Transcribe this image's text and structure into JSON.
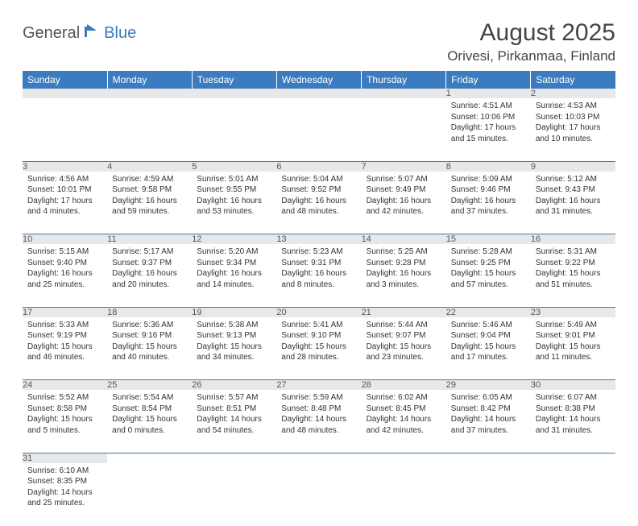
{
  "logo": {
    "text1": "General",
    "text2": "Blue"
  },
  "title": "August 2025",
  "location": "Orivesi, Pirkanmaa, Finland",
  "colors": {
    "header_bg": "#3b7bbf",
    "header_fg": "#ffffff",
    "daynum_bg": "#e8e8e8",
    "rule": "#3b7bbf"
  },
  "weekdays": [
    "Sunday",
    "Monday",
    "Tuesday",
    "Wednesday",
    "Thursday",
    "Friday",
    "Saturday"
  ],
  "weeks": [
    [
      null,
      null,
      null,
      null,
      null,
      {
        "n": "1",
        "sr": "Sunrise: 4:51 AM",
        "ss": "Sunset: 10:06 PM",
        "dl": "Daylight: 17 hours and 15 minutes."
      },
      {
        "n": "2",
        "sr": "Sunrise: 4:53 AM",
        "ss": "Sunset: 10:03 PM",
        "dl": "Daylight: 17 hours and 10 minutes."
      }
    ],
    [
      {
        "n": "3",
        "sr": "Sunrise: 4:56 AM",
        "ss": "Sunset: 10:01 PM",
        "dl": "Daylight: 17 hours and 4 minutes."
      },
      {
        "n": "4",
        "sr": "Sunrise: 4:59 AM",
        "ss": "Sunset: 9:58 PM",
        "dl": "Daylight: 16 hours and 59 minutes."
      },
      {
        "n": "5",
        "sr": "Sunrise: 5:01 AM",
        "ss": "Sunset: 9:55 PM",
        "dl": "Daylight: 16 hours and 53 minutes."
      },
      {
        "n": "6",
        "sr": "Sunrise: 5:04 AM",
        "ss": "Sunset: 9:52 PM",
        "dl": "Daylight: 16 hours and 48 minutes."
      },
      {
        "n": "7",
        "sr": "Sunrise: 5:07 AM",
        "ss": "Sunset: 9:49 PM",
        "dl": "Daylight: 16 hours and 42 minutes."
      },
      {
        "n": "8",
        "sr": "Sunrise: 5:09 AM",
        "ss": "Sunset: 9:46 PM",
        "dl": "Daylight: 16 hours and 37 minutes."
      },
      {
        "n": "9",
        "sr": "Sunrise: 5:12 AM",
        "ss": "Sunset: 9:43 PM",
        "dl": "Daylight: 16 hours and 31 minutes."
      }
    ],
    [
      {
        "n": "10",
        "sr": "Sunrise: 5:15 AM",
        "ss": "Sunset: 9:40 PM",
        "dl": "Daylight: 16 hours and 25 minutes."
      },
      {
        "n": "11",
        "sr": "Sunrise: 5:17 AM",
        "ss": "Sunset: 9:37 PM",
        "dl": "Daylight: 16 hours and 20 minutes."
      },
      {
        "n": "12",
        "sr": "Sunrise: 5:20 AM",
        "ss": "Sunset: 9:34 PM",
        "dl": "Daylight: 16 hours and 14 minutes."
      },
      {
        "n": "13",
        "sr": "Sunrise: 5:23 AM",
        "ss": "Sunset: 9:31 PM",
        "dl": "Daylight: 16 hours and 8 minutes."
      },
      {
        "n": "14",
        "sr": "Sunrise: 5:25 AM",
        "ss": "Sunset: 9:28 PM",
        "dl": "Daylight: 16 hours and 3 minutes."
      },
      {
        "n": "15",
        "sr": "Sunrise: 5:28 AM",
        "ss": "Sunset: 9:25 PM",
        "dl": "Daylight: 15 hours and 57 minutes."
      },
      {
        "n": "16",
        "sr": "Sunrise: 5:31 AM",
        "ss": "Sunset: 9:22 PM",
        "dl": "Daylight: 15 hours and 51 minutes."
      }
    ],
    [
      {
        "n": "17",
        "sr": "Sunrise: 5:33 AM",
        "ss": "Sunset: 9:19 PM",
        "dl": "Daylight: 15 hours and 46 minutes."
      },
      {
        "n": "18",
        "sr": "Sunrise: 5:36 AM",
        "ss": "Sunset: 9:16 PM",
        "dl": "Daylight: 15 hours and 40 minutes."
      },
      {
        "n": "19",
        "sr": "Sunrise: 5:38 AM",
        "ss": "Sunset: 9:13 PM",
        "dl": "Daylight: 15 hours and 34 minutes."
      },
      {
        "n": "20",
        "sr": "Sunrise: 5:41 AM",
        "ss": "Sunset: 9:10 PM",
        "dl": "Daylight: 15 hours and 28 minutes."
      },
      {
        "n": "21",
        "sr": "Sunrise: 5:44 AM",
        "ss": "Sunset: 9:07 PM",
        "dl": "Daylight: 15 hours and 23 minutes."
      },
      {
        "n": "22",
        "sr": "Sunrise: 5:46 AM",
        "ss": "Sunset: 9:04 PM",
        "dl": "Daylight: 15 hours and 17 minutes."
      },
      {
        "n": "23",
        "sr": "Sunrise: 5:49 AM",
        "ss": "Sunset: 9:01 PM",
        "dl": "Daylight: 15 hours and 11 minutes."
      }
    ],
    [
      {
        "n": "24",
        "sr": "Sunrise: 5:52 AM",
        "ss": "Sunset: 8:58 PM",
        "dl": "Daylight: 15 hours and 5 minutes."
      },
      {
        "n": "25",
        "sr": "Sunrise: 5:54 AM",
        "ss": "Sunset: 8:54 PM",
        "dl": "Daylight: 15 hours and 0 minutes."
      },
      {
        "n": "26",
        "sr": "Sunrise: 5:57 AM",
        "ss": "Sunset: 8:51 PM",
        "dl": "Daylight: 14 hours and 54 minutes."
      },
      {
        "n": "27",
        "sr": "Sunrise: 5:59 AM",
        "ss": "Sunset: 8:48 PM",
        "dl": "Daylight: 14 hours and 48 minutes."
      },
      {
        "n": "28",
        "sr": "Sunrise: 6:02 AM",
        "ss": "Sunset: 8:45 PM",
        "dl": "Daylight: 14 hours and 42 minutes."
      },
      {
        "n": "29",
        "sr": "Sunrise: 6:05 AM",
        "ss": "Sunset: 8:42 PM",
        "dl": "Daylight: 14 hours and 37 minutes."
      },
      {
        "n": "30",
        "sr": "Sunrise: 6:07 AM",
        "ss": "Sunset: 8:38 PM",
        "dl": "Daylight: 14 hours and 31 minutes."
      }
    ],
    [
      {
        "n": "31",
        "sr": "Sunrise: 6:10 AM",
        "ss": "Sunset: 8:35 PM",
        "dl": "Daylight: 14 hours and 25 minutes."
      },
      null,
      null,
      null,
      null,
      null,
      null
    ]
  ]
}
